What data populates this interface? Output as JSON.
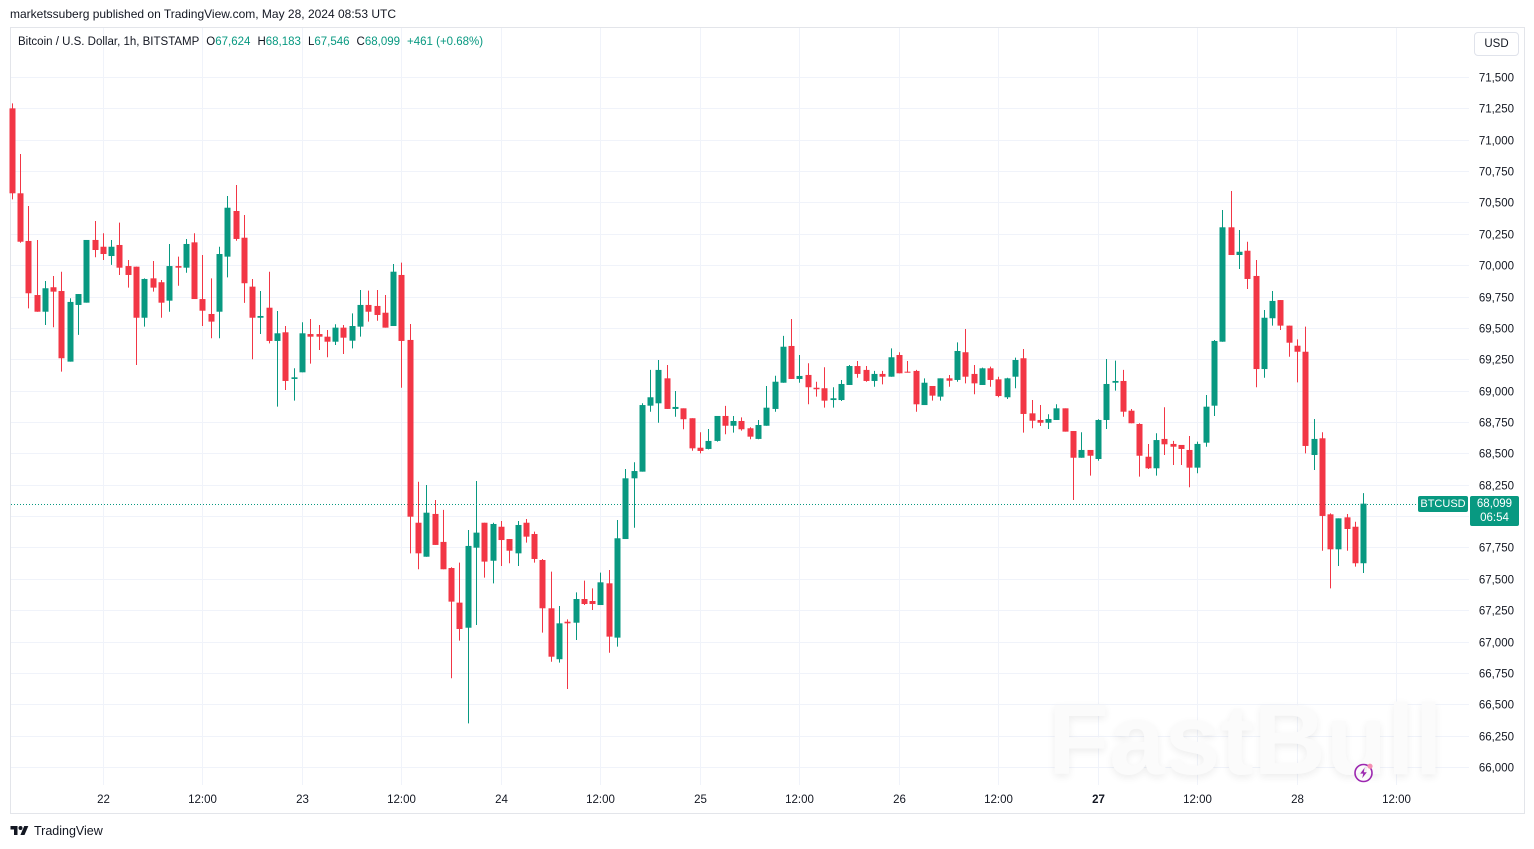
{
  "header": {
    "published_text": "marketssuberg published on TradingView.com, May 28, 2024 08:53 UTC"
  },
  "legend": {
    "symbol": "Bitcoin / U.S. Dollar, 1h, BITSTAMP",
    "o_label": "O",
    "o_value": "67,624",
    "h_label": "H",
    "h_value": "68,183",
    "l_label": "L",
    "l_value": "67,546",
    "c_label": "C",
    "c_value": "68,099",
    "change": "+461 (+0.68%)"
  },
  "currency_button": {
    "label": "USD"
  },
  "last_price": {
    "symbol_label": "BTCUSD",
    "price": "68,099",
    "countdown": "06:54",
    "value": 68099
  },
  "watermark": {
    "text": "FastBull"
  },
  "icons": {
    "lightning": "lightning-bolt-icon",
    "brand_logo": "tradingview-logo-icon"
  },
  "footer": {
    "brand": "TradingView"
  },
  "colors": {
    "up": "#089981",
    "down": "#f23645",
    "grid": "#f0f3fa",
    "text": "#131722",
    "accent_purple": "#9c27b0"
  },
  "chart_data": {
    "type": "candlestick",
    "title": "Bitcoin / U.S. Dollar, 1h, BITSTAMP",
    "interval": "1h",
    "x_start": "May 21 13:00",
    "x_end": "May 28 08:00",
    "xlabel": "",
    "ylabel": "USD",
    "ylim": [
      66000,
      71500
    ],
    "grid": true,
    "legend_position": "top-left",
    "y_ticks": [
      {
        "value": 71500,
        "label": "71,500"
      },
      {
        "value": 71250,
        "label": "71,250"
      },
      {
        "value": 71000,
        "label": "71,000"
      },
      {
        "value": 70750,
        "label": "70,750"
      },
      {
        "value": 70500,
        "label": "70,500"
      },
      {
        "value": 70250,
        "label": "70,250"
      },
      {
        "value": 70000,
        "label": "70,000"
      },
      {
        "value": 69750,
        "label": "69,750"
      },
      {
        "value": 69500,
        "label": "69,500"
      },
      {
        "value": 69250,
        "label": "69,250"
      },
      {
        "value": 69000,
        "label": "69,000"
      },
      {
        "value": 68750,
        "label": "68,750"
      },
      {
        "value": 68500,
        "label": "68,500"
      },
      {
        "value": 68250,
        "label": "68,250"
      },
      {
        "value": 68000,
        "label": ""
      },
      {
        "value": 67750,
        "label": "67,750"
      },
      {
        "value": 67500,
        "label": "67,500"
      },
      {
        "value": 67250,
        "label": "67,250"
      },
      {
        "value": 67000,
        "label": "67,000"
      },
      {
        "value": 66750,
        "label": "66,750"
      },
      {
        "value": 66500,
        "label": "66,500"
      },
      {
        "value": 66250,
        "label": "66,250"
      },
      {
        "value": 66000,
        "label": "66,000"
      }
    ],
    "x_ticks": [
      {
        "label": "22",
        "index": 11
      },
      {
        "label": "12:00",
        "index": 23
      },
      {
        "label": "23",
        "index": 35
      },
      {
        "label": "12:00",
        "index": 47
      },
      {
        "label": "24",
        "index": 59
      },
      {
        "label": "12:00",
        "index": 71
      },
      {
        "label": "25",
        "index": 83
      },
      {
        "label": "12:00",
        "index": 95
      },
      {
        "label": "26",
        "index": 107
      },
      {
        "label": "12:00",
        "index": 119
      },
      {
        "label": "27",
        "index": 131,
        "bold": true
      },
      {
        "label": "12:00",
        "index": 143
      },
      {
        "label": "28",
        "index": 155
      },
      {
        "label": "12:00",
        "index": 167
      }
    ],
    "open": [
      71250,
      70573,
      70193,
      69762,
      69629,
      69824,
      69794,
      69231,
      69683,
      69701,
      70201,
      70147,
      70073,
      70161,
      69993,
      69988,
      69581,
      69895,
      69864,
      69717,
      69993,
      69980,
      70182,
      69730,
      69611,
      69629,
      70068,
      70432,
      70219,
      69829,
      69581,
      69661,
      69396,
      69465,
      69093,
      69146,
      69451,
      69451,
      69430,
      69390,
      69502,
      69398,
      69510,
      69683,
      69675,
      69621,
      69515,
      69922,
      69404,
      67947,
      67676,
      68017,
      67794,
      67586,
      67310,
      67110,
      67748,
      67947,
      67644,
      67915,
      67817,
      67703,
      67947,
      67857,
      67650,
      67265,
      66859,
      67158,
      67150,
      67339,
      67323,
      67291,
      67464,
      67031,
      67817,
      68301,
      68354,
      68880,
      68899,
      69098,
      68854,
      68859,
      68780,
      68545,
      68535,
      68599,
      68798,
      68720,
      68758,
      68700,
      68615,
      68720,
      68854,
      69063,
      69356,
      69093,
      69125,
      69023,
      69019,
      68925,
      68925,
      69045,
      69196,
      69165,
      69077,
      69133,
      69111,
      69284,
      69151,
      69157,
      68885,
      69037,
      68952,
      69098,
      69085,
      69306,
      69133,
      69045,
      69178,
      69090,
      68947,
      69111,
      69258,
      68819,
      68766,
      68744,
      68766,
      68859,
      68678,
      68465,
      68527,
      68455,
      68766,
      69063,
      69077,
      68840,
      68734,
      68473,
      68381,
      68615,
      68575,
      68567,
      68527,
      68386,
      68585,
      68880,
      69390,
      70302,
      70081,
      70115,
      69914,
      69172,
      69577,
      69722,
      69518,
      69358,
      69310,
      68487,
      68620,
      68014,
      67735,
      67990,
      67915,
      67624
    ],
    "high": [
      71290,
      70886,
      70472,
      70201,
      69874,
      69914,
      69948,
      69736,
      69770,
      70201,
      70352,
      70254,
      70201,
      70339,
      70041,
      69988,
      69895,
      70033,
      69882,
      70169,
      70068,
      70209,
      70254,
      70081,
      69895,
      70147,
      70551,
      70639,
      70400,
      69890,
      69794,
      69948,
      69635,
      69515,
      69178,
      69545,
      69571,
      69523,
      69483,
      69529,
      69523,
      69616,
      69802,
      69797,
      69802,
      69762,
      70009,
      70020,
      69531,
      68274,
      68248,
      68128,
      68049,
      67592,
      67629,
      67889,
      68280,
      67947,
      67947,
      67961,
      67817,
      67961,
      67977,
      67876,
      67658,
      67557,
      67283,
      67177,
      67392,
      67485,
      67424,
      67549,
      67570,
      67969,
      68375,
      68429,
      68899,
      69165,
      69244,
      69204,
      68997,
      68859,
      68780,
      68668,
      68694,
      68798,
      68878,
      68798,
      68787,
      68708,
      68766,
      69037,
      69119,
      69436,
      69571,
      69284,
      69218,
      69071,
      69186,
      69027,
      69085,
      69204,
      69236,
      69196,
      69157,
      69157,
      69337,
      69306,
      69236,
      69165,
      69098,
      69037,
      69098,
      69125,
      69385,
      69491,
      69204,
      69183,
      69191,
      69111,
      69103,
      69263,
      69332,
      68925,
      68885,
      68812,
      68891,
      68859,
      68678,
      68668,
      68527,
      68772,
      69252,
      69239,
      69165,
      68854,
      68740,
      68575,
      68660,
      68867,
      68599,
      68567,
      68638,
      68593,
      68965,
      69404,
      70440,
      70591,
      70280,
      70187,
      70041,
      69643,
      69794,
      69722,
      69518,
      69409,
      69510,
      68774,
      68668,
      68022,
      67982,
      68017,
      67955,
      68183
    ],
    "low": [
      70525,
      70179,
      69656,
      69629,
      69523,
      69505,
      69151,
      69231,
      69444,
      69701,
      70063,
      70041,
      70002,
      69922,
      69821,
      69204,
      69510,
      69789,
      69581,
      69629,
      69836,
      69940,
      69730,
      69515,
      69417,
      69417,
      69903,
      70195,
      69699,
      69250,
      69451,
      69377,
      68872,
      69005,
      68920,
      69146,
      69215,
      69324,
      69266,
      69364,
      69292,
      69337,
      69430,
      69550,
      69557,
      69502,
      69515,
      69023,
      67703,
      67576,
      67676,
      67770,
      67576,
      66707,
      67007,
      66348,
      67132,
      67509,
      67464,
      67602,
      67624,
      67602,
      67788,
      67629,
      67071,
      66839,
      66832,
      66622,
      67012,
      67291,
      67251,
      67291,
      66911,
      66959,
      67817,
      67907,
      68354,
      68832,
      68744,
      68854,
      68792,
      68692,
      68521,
      68500,
      68532,
      68593,
      68652,
      68665,
      68681,
      68612,
      68612,
      68720,
      68832,
      69063,
      69093,
      69063,
      68891,
      68952,
      68864,
      68864,
      68917,
      69045,
      69103,
      69071,
      69031,
      69050,
      69111,
      69138,
      69143,
      68832,
      68885,
      68920,
      68920,
      69031,
      69071,
      69058,
      68971,
      69045,
      69031,
      68947,
      68933,
      69019,
      68665,
      68700,
      68718,
      68694,
      68766,
      68673,
      68128,
      68465,
      68322,
      68441,
      68694,
      69000,
      68792,
      68740,
      68314,
      68375,
      68322,
      68487,
      68407,
      68407,
      68230,
      68341,
      68553,
      68798,
      69390,
      70081,
      69970,
      69810,
      69027,
      69103,
      69518,
      69483,
      69270,
      69066,
      68500,
      68367,
      67724,
      67424,
      67602,
      67724,
      67597,
      67546
    ],
    "close": [
      70573,
      70187,
      69776,
      69629,
      69816,
      69789,
      69258,
      69707,
      69770,
      70201,
      70121,
      70089,
      70147,
      69980,
      69922,
      69581,
      69890,
      69821,
      69701,
      69993,
      69980,
      70169,
      69730,
      69637,
      69550,
      70089,
      70458,
      70209,
      69856,
      69581,
      69595,
      69396,
      69457,
      69077,
      69106,
      69457,
      69430,
      69430,
      69390,
      69502,
      69422,
      69515,
      69683,
      69629,
      69603,
      69502,
      69948,
      69396,
      67995,
      67703,
      68027,
      67770,
      67576,
      67318,
      67100,
      67762,
      67868,
      67637,
      67937,
      67809,
      67724,
      67929,
      67836,
      67658,
      67265,
      66879,
      67145,
      67145,
      67339,
      67299,
      67299,
      67472,
      67039,
      67823,
      68301,
      68359,
      68885,
      68947,
      69165,
      68854,
      68870,
      68772,
      68540,
      68519,
      68599,
      68798,
      68720,
      68758,
      68692,
      68633,
      68726,
      68864,
      69071,
      69350,
      69093,
      69117,
      69027,
      69011,
      68920,
      68939,
      69053,
      69196,
      69133,
      69077,
      69133,
      69111,
      69266,
      69138,
      69143,
      68891,
      69063,
      68960,
      69098,
      69079,
      69316,
      69111,
      69058,
      69178,
      69085,
      68957,
      69098,
      69244,
      68814,
      68760,
      68744,
      68774,
      68859,
      68673,
      68465,
      68527,
      68481,
      68766,
      69053,
      69077,
      68832,
      68740,
      68481,
      68381,
      68606,
      68572,
      68553,
      68535,
      68386,
      68575,
      68872,
      69396,
      70302,
      70081,
      70107,
      69890,
      69172,
      69581,
      69715,
      69518,
      69382,
      69310,
      68559,
      68615,
      68001,
      67735,
      67982,
      67897,
      67624,
      68099
    ],
    "last_price": 68099,
    "last_bar": {
      "open": 67624,
      "high": 68183,
      "low": 67546,
      "close": 68099,
      "change": 461,
      "change_pct": 0.68
    }
  }
}
